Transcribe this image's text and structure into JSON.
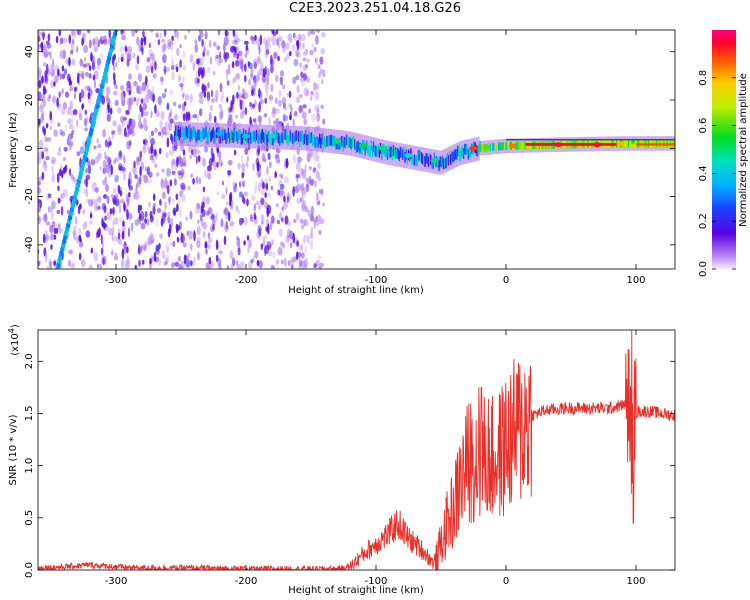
{
  "title": "C2E3.2023.251.04.18.G26",
  "chart_data": [
    {
      "type": "heatmap",
      "xlabel": "Height of straight line (km)",
      "ylabel": "Frequency (Hz)",
      "xlim": [
        -360,
        130
      ],
      "ylim": [
        -50,
        49
      ],
      "xticks": [
        -300,
        -200,
        -100,
        0,
        100
      ],
      "yticks": [
        -40,
        -20,
        0,
        20,
        40
      ],
      "colorbar": {
        "label": "Normalized spectral amplitude",
        "range": [
          0.0,
          1.0
        ],
        "ticks": [
          0.0,
          0.2,
          0.4,
          0.6,
          0.8
        ],
        "tick_labels": [
          "0.0",
          "0.2",
          "0.4",
          "0.6",
          "0.8"
        ]
      },
      "features": [
        {
          "kind": "diagonal_streak",
          "from": [
            -345,
            -50
          ],
          "to": [
            -300,
            49
          ],
          "amplitude": 0.35
        },
        {
          "kind": "signal_band",
          "points": [
            [
              -255,
              6
            ],
            [
              -200,
              5
            ],
            [
              -150,
              4
            ],
            [
              -120,
              2
            ],
            [
              -90,
              -2
            ],
            [
              -70,
              -4
            ],
            [
              -50,
              -6
            ],
            [
              -35,
              -2
            ],
            [
              -20,
              0
            ],
            [
              0,
              1
            ],
            [
              40,
              1.5
            ],
            [
              90,
              2
            ],
            [
              130,
              2
            ]
          ],
          "amplitude": [
            0.3,
            0.9
          ]
        },
        {
          "kind": "noise_region",
          "xrange": [
            -360,
            -140
          ],
          "yrange": [
            -50,
            49
          ],
          "amplitude": 0.1
        }
      ]
    },
    {
      "type": "line",
      "xlabel": "Height of straight line (km)",
      "ylabel": "SNR (10 * v/v)",
      "y_multiplier": "(x10",
      "y_multiplier_exp": "4",
      "y_multiplier_close": ")",
      "xlim": [
        -360,
        130
      ],
      "ylim": [
        0,
        2.3
      ],
      "xticks": [
        -300,
        -200,
        -100,
        0,
        100
      ],
      "yticks": [
        0.0,
        0.5,
        1.0,
        1.5,
        2.0
      ],
      "ytick_labels": [
        "0.0",
        "0.5",
        "1.0",
        "1.5",
        "2.0"
      ],
      "series": [
        {
          "color": "#e8302a",
          "x": [
            -360,
            -340,
            -320,
            -300,
            -280,
            -250,
            -200,
            -160,
            -130,
            -120,
            -110,
            -100,
            -90,
            -83,
            -75,
            -65,
            -58,
            -55,
            -50,
            -45,
            -40,
            -35,
            -32,
            -28,
            -25,
            -20,
            -15,
            -10,
            -5,
            0,
            10,
            20,
            30,
            45,
            60,
            80,
            90,
            95,
            97,
            99,
            102,
            110,
            130
          ],
          "y": [
            0.02,
            0.03,
            0.05,
            0.03,
            0.02,
            0.02,
            0.01,
            0.01,
            0.01,
            0.03,
            0.15,
            0.25,
            0.35,
            0.45,
            0.3,
            0.2,
            0.1,
            0.05,
            0.25,
            0.45,
            0.6,
            0.85,
            0.95,
            1.05,
            1.1,
            1.0,
            1.1,
            1.05,
            1.1,
            1.2,
            1.35,
            1.48,
            1.53,
            1.55,
            1.55,
            1.55,
            1.58,
            1.6,
            1.2,
            1.5,
            1.52,
            1.52,
            1.48
          ]
        }
      ]
    }
  ]
}
